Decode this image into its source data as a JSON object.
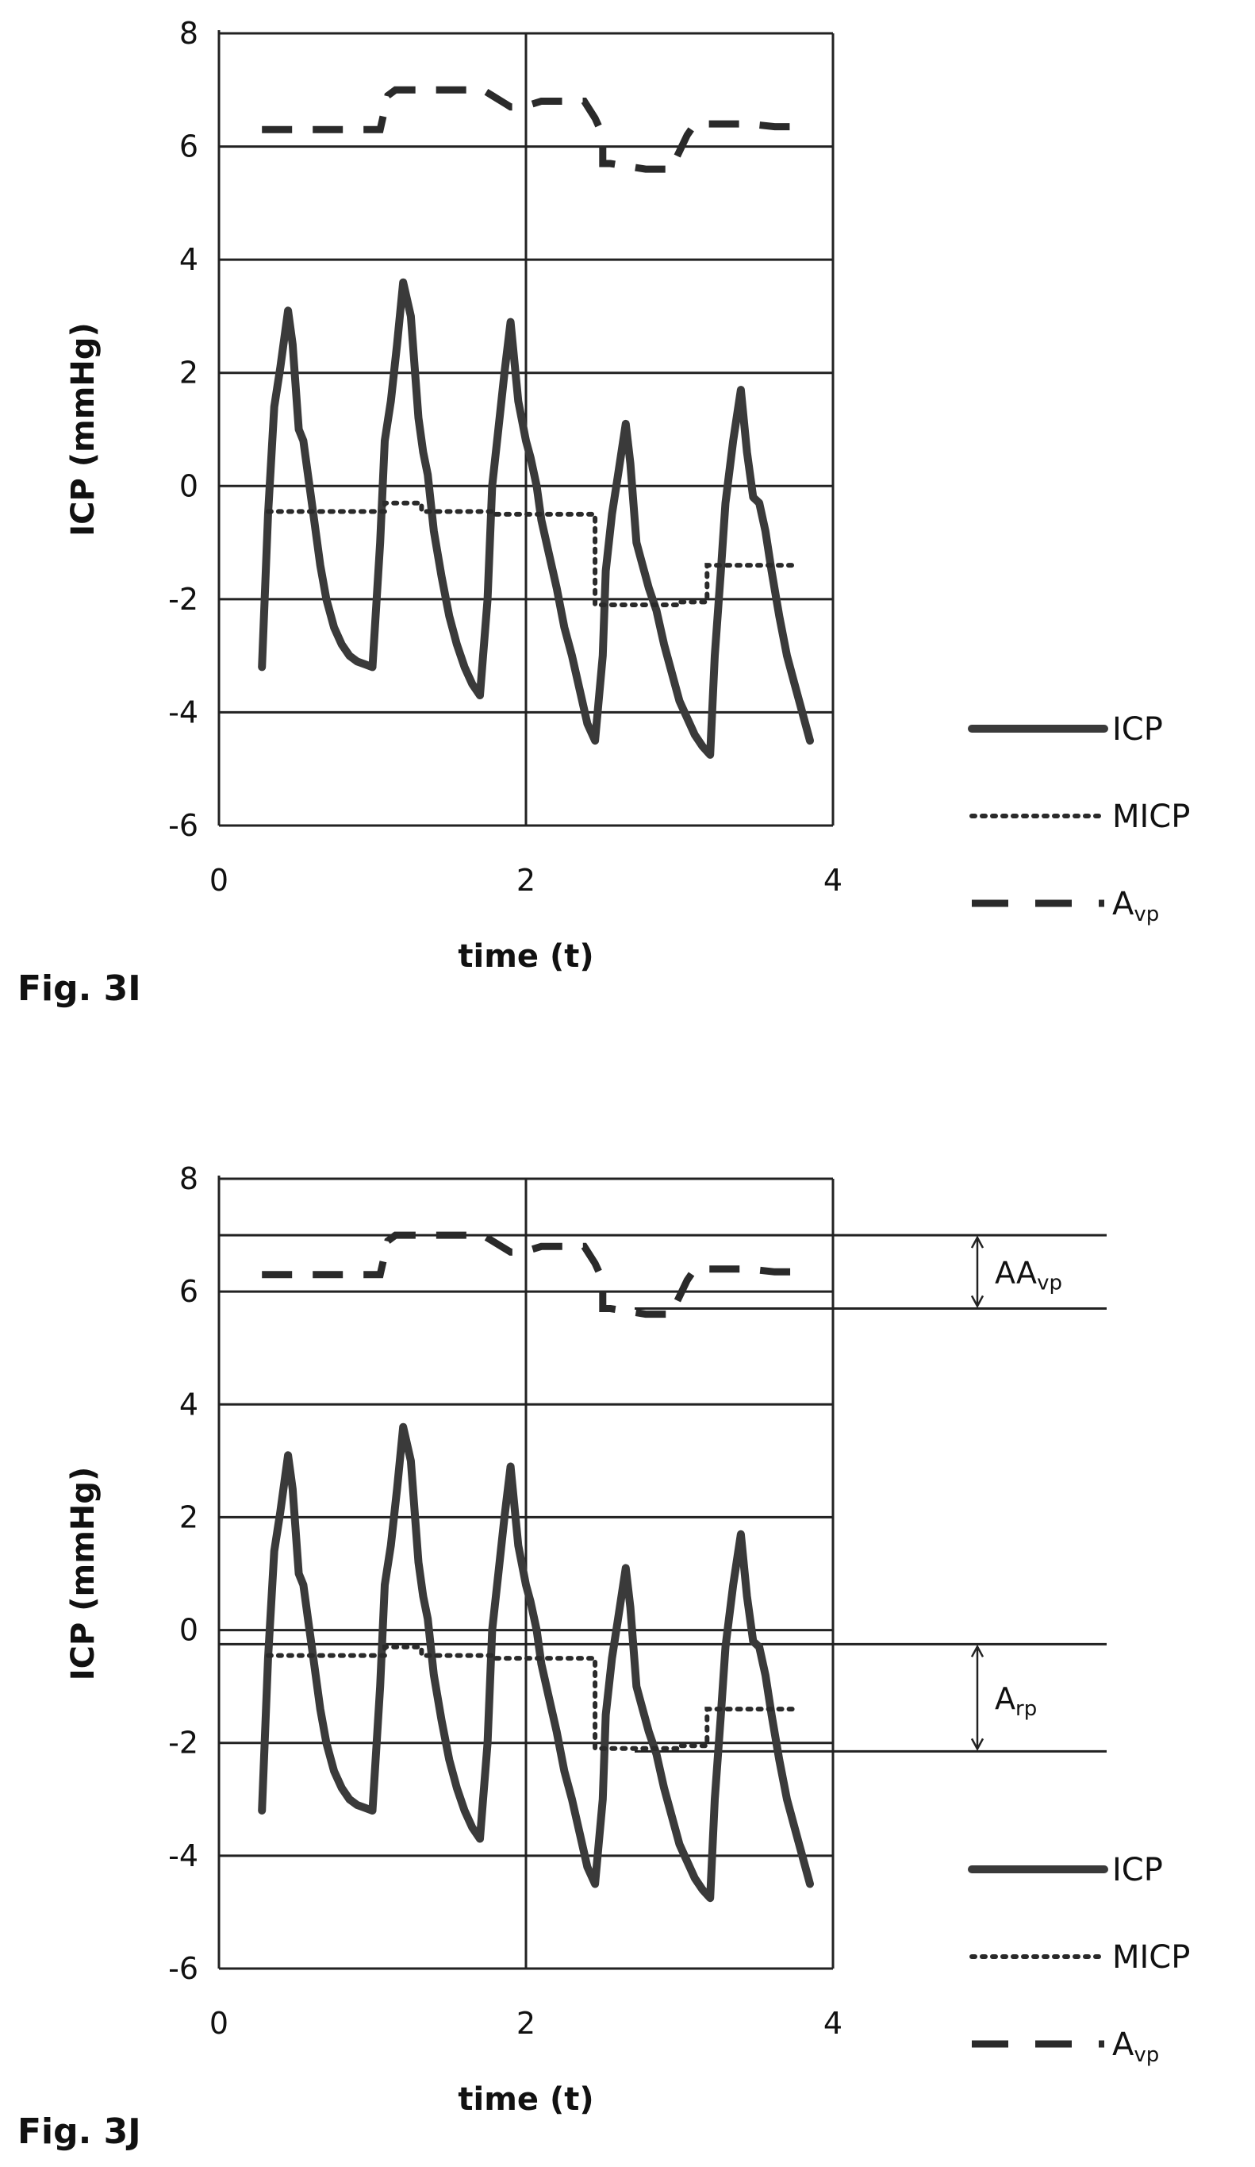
{
  "chart_data": [
    {
      "type": "line",
      "figure_label": "Fig. 3I",
      "xlabel": "time (t)",
      "ylabel": "ICP (mmHg)",
      "xlim": [
        0,
        4
      ],
      "ylim": [
        -6,
        8
      ],
      "x_ticks": [
        "0",
        "2",
        "4"
      ],
      "y_ticks": [
        "-6",
        "-4",
        "-2",
        "0",
        "2",
        "4",
        "6",
        "8"
      ],
      "grid": true,
      "legend": {
        "position": "bottom-right",
        "entries": [
          {
            "label": "ICP",
            "style": "solid"
          },
          {
            "label": "MICP",
            "style": "dotted"
          },
          {
            "label": "A",
            "sub": "vp",
            "style": "dashed"
          }
        ]
      },
      "series": [
        {
          "name": "ICP",
          "style": "solid",
          "x": [
            0.28,
            0.32,
            0.36,
            0.4,
            0.45,
            0.48,
            0.52,
            0.55,
            0.58,
            0.62,
            0.66,
            0.7,
            0.75,
            0.8,
            0.85,
            0.9,
            0.95,
            1.0,
            1.05,
            1.08,
            1.12,
            1.16,
            1.2,
            1.25,
            1.3,
            1.33,
            1.36,
            1.4,
            1.45,
            1.5,
            1.55,
            1.6,
            1.65,
            1.7,
            1.75,
            1.78,
            1.82,
            1.86,
            1.9,
            1.95,
            2.0,
            2.03,
            2.07,
            2.1,
            2.15,
            2.2,
            2.25,
            2.3,
            2.35,
            2.4,
            2.45,
            2.5,
            2.52,
            2.56,
            2.6,
            2.65,
            2.68,
            2.72,
            2.75,
            2.8,
            2.85,
            2.9,
            2.95,
            3.0,
            3.05,
            3.1,
            3.15,
            3.2,
            3.23,
            3.27,
            3.3,
            3.35,
            3.4,
            3.44,
            3.48,
            3.52,
            3.56,
            3.6,
            3.65,
            3.7,
            3.75,
            3.8,
            3.85
          ],
          "values": [
            -3.2,
            -0.5,
            1.4,
            2.1,
            3.1,
            2.5,
            1.0,
            0.8,
            0.2,
            -0.6,
            -1.4,
            -2.0,
            -2.5,
            -2.8,
            -3.0,
            -3.1,
            -3.15,
            -3.2,
            -1.0,
            0.8,
            1.5,
            2.5,
            3.6,
            3.0,
            1.2,
            0.6,
            0.2,
            -0.8,
            -1.6,
            -2.3,
            -2.8,
            -3.2,
            -3.5,
            -3.7,
            -2.0,
            0.0,
            1.0,
            2.0,
            2.9,
            1.5,
            0.8,
            0.5,
            0.0,
            -0.6,
            -1.2,
            -1.8,
            -2.5,
            -3.0,
            -3.6,
            -4.2,
            -4.5,
            -3.0,
            -1.5,
            -0.5,
            0.2,
            1.1,
            0.4,
            -1.0,
            -1.3,
            -1.8,
            -2.2,
            -2.8,
            -3.3,
            -3.8,
            -4.1,
            -4.4,
            -4.6,
            -4.75,
            -3.0,
            -1.5,
            -0.3,
            0.8,
            1.7,
            0.6,
            -0.2,
            -0.3,
            -0.8,
            -1.5,
            -2.3,
            -3.0,
            -3.5,
            -4.0,
            -4.5
          ]
        },
        {
          "name": "MICP",
          "style": "dotted",
          "x": [
            0.32,
            1.08,
            1.08,
            1.32,
            1.32,
            1.78,
            1.78,
            2.45,
            2.45,
            3.0,
            3.0,
            3.18,
            3.18,
            3.75
          ],
          "values": [
            -0.45,
            -0.45,
            -0.3,
            -0.3,
            -0.45,
            -0.45,
            -0.5,
            -0.5,
            -2.1,
            -2.1,
            -2.05,
            -2.05,
            -1.4,
            -1.4
          ]
        },
        {
          "name": "Avp",
          "style": "dashed",
          "x": [
            0.28,
            0.6,
            0.72,
            1.0,
            1.05,
            1.1,
            1.15,
            1.5,
            1.72,
            1.78,
            1.9,
            1.98,
            2.1,
            2.38,
            2.45,
            2.5,
            2.5,
            2.55,
            2.78,
            2.95,
            2.98,
            3.05,
            3.1,
            3.45,
            3.62,
            3.82
          ],
          "values": [
            6.3,
            6.3,
            6.3,
            6.3,
            6.3,
            6.9,
            7.0,
            7.0,
            7.0,
            6.9,
            6.7,
            6.7,
            6.8,
            6.8,
            6.5,
            6.2,
            5.7,
            5.7,
            5.6,
            5.6,
            5.8,
            6.2,
            6.4,
            6.4,
            6.35,
            6.35
          ]
        }
      ]
    },
    {
      "type": "line",
      "figure_label": "Fig. 3J",
      "xlabel": "time (t)",
      "ylabel": "ICP (mmHg)",
      "xlim": [
        0,
        4
      ],
      "ylim": [
        -6,
        8
      ],
      "x_ticks": [
        "0",
        "2",
        "4"
      ],
      "y_ticks": [
        "-6",
        "-4",
        "-2",
        "0",
        "2",
        "4",
        "6",
        "8"
      ],
      "grid": true,
      "legend": {
        "position": "bottom-right",
        "entries": [
          {
            "label": "ICP",
            "style": "solid"
          },
          {
            "label": "MICP",
            "style": "dotted"
          },
          {
            "label": "A",
            "sub": "vp",
            "style": "dashed"
          }
        ]
      },
      "annotations": [
        {
          "label": "AA",
          "sub": "vp",
          "y_top": 7.0,
          "y_bottom": 5.7
        },
        {
          "label": "A",
          "sub": "rp",
          "y_top": -0.25,
          "y_bottom": -2.15
        }
      ],
      "series": [
        {
          "name": "ICP",
          "style": "solid",
          "x": [
            0.28,
            0.32,
            0.36,
            0.4,
            0.45,
            0.48,
            0.52,
            0.55,
            0.58,
            0.62,
            0.66,
            0.7,
            0.75,
            0.8,
            0.85,
            0.9,
            0.95,
            1.0,
            1.05,
            1.08,
            1.12,
            1.16,
            1.2,
            1.25,
            1.3,
            1.33,
            1.36,
            1.4,
            1.45,
            1.5,
            1.55,
            1.6,
            1.65,
            1.7,
            1.75,
            1.78,
            1.82,
            1.86,
            1.9,
            1.95,
            2.0,
            2.03,
            2.07,
            2.1,
            2.15,
            2.2,
            2.25,
            2.3,
            2.35,
            2.4,
            2.45,
            2.5,
            2.52,
            2.56,
            2.6,
            2.65,
            2.68,
            2.72,
            2.75,
            2.8,
            2.85,
            2.9,
            2.95,
            3.0,
            3.05,
            3.1,
            3.15,
            3.2,
            3.23,
            3.27,
            3.3,
            3.35,
            3.4,
            3.44,
            3.48,
            3.52,
            3.56,
            3.6,
            3.65,
            3.7,
            3.75,
            3.8,
            3.85
          ],
          "values": [
            -3.2,
            -0.5,
            1.4,
            2.1,
            3.1,
            2.5,
            1.0,
            0.8,
            0.2,
            -0.6,
            -1.4,
            -2.0,
            -2.5,
            -2.8,
            -3.0,
            -3.1,
            -3.15,
            -3.2,
            -1.0,
            0.8,
            1.5,
            2.5,
            3.6,
            3.0,
            1.2,
            0.6,
            0.2,
            -0.8,
            -1.6,
            -2.3,
            -2.8,
            -3.2,
            -3.5,
            -3.7,
            -2.0,
            0.0,
            1.0,
            2.0,
            2.9,
            1.5,
            0.8,
            0.5,
            0.0,
            -0.6,
            -1.2,
            -1.8,
            -2.5,
            -3.0,
            -3.6,
            -4.2,
            -4.5,
            -3.0,
            -1.5,
            -0.5,
            0.2,
            1.1,
            0.4,
            -1.0,
            -1.3,
            -1.8,
            -2.2,
            -2.8,
            -3.3,
            -3.8,
            -4.1,
            -4.4,
            -4.6,
            -4.75,
            -3.0,
            -1.5,
            -0.3,
            0.8,
            1.7,
            0.6,
            -0.2,
            -0.3,
            -0.8,
            -1.5,
            -2.3,
            -3.0,
            -3.5,
            -4.0,
            -4.5
          ]
        },
        {
          "name": "MICP",
          "style": "dotted",
          "x": [
            0.32,
            1.08,
            1.08,
            1.32,
            1.32,
            1.78,
            1.78,
            2.45,
            2.45,
            3.0,
            3.0,
            3.18,
            3.18,
            3.75
          ],
          "values": [
            -0.45,
            -0.45,
            -0.3,
            -0.3,
            -0.45,
            -0.45,
            -0.5,
            -0.5,
            -2.1,
            -2.1,
            -2.05,
            -2.05,
            -1.4,
            -1.4
          ]
        },
        {
          "name": "Avp",
          "style": "dashed",
          "x": [
            0.28,
            0.6,
            0.72,
            1.0,
            1.05,
            1.1,
            1.15,
            1.5,
            1.72,
            1.78,
            1.9,
            1.98,
            2.1,
            2.38,
            2.45,
            2.5,
            2.5,
            2.55,
            2.78,
            2.95,
            2.98,
            3.05,
            3.1,
            3.45,
            3.62,
            3.82
          ],
          "values": [
            6.3,
            6.3,
            6.3,
            6.3,
            6.3,
            6.9,
            7.0,
            7.0,
            7.0,
            6.9,
            6.7,
            6.7,
            6.8,
            6.8,
            6.5,
            6.2,
            5.7,
            5.7,
            5.6,
            5.6,
            5.8,
            6.2,
            6.4,
            6.4,
            6.35,
            6.35
          ]
        }
      ]
    }
  ]
}
